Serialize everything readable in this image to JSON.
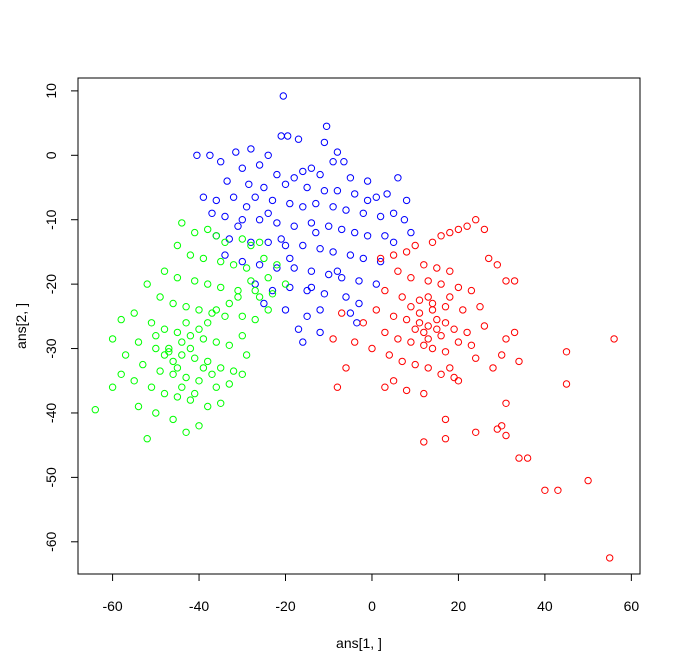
{
  "chart_data": {
    "type": "scatter",
    "title": "",
    "xlabel": "ans[1, ]",
    "ylabel": "ans[2, ]",
    "xlim": [
      -68,
      62
    ],
    "ylim": [
      -65,
      12
    ],
    "xticks": [
      -60,
      -40,
      -20,
      0,
      20,
      40,
      60
    ],
    "yticks": [
      10,
      0,
      -10,
      -20,
      -30,
      -40,
      -50,
      -60
    ],
    "marker": "open-circle",
    "series": [
      {
        "color": "#0000ff",
        "points": [
          [
            -20.5,
            9.2
          ],
          [
            -21,
            3
          ],
          [
            -19.5,
            3
          ],
          [
            -17,
            2.5
          ],
          [
            -10.5,
            4.5
          ],
          [
            -11,
            2
          ],
          [
            -8,
            0.5
          ],
          [
            -40.5,
            0
          ],
          [
            -37.5,
            0
          ],
          [
            -31.5,
            0.5
          ],
          [
            -28,
            1
          ],
          [
            -24,
            0
          ],
          [
            -9,
            -1
          ],
          [
            -6.5,
            -1
          ],
          [
            -35,
            -1
          ],
          [
            -26,
            -1.5
          ],
          [
            -30,
            -2
          ],
          [
            -16,
            -2.5
          ],
          [
            -22,
            -3
          ],
          [
            -18,
            -3.5
          ],
          [
            -14,
            -2
          ],
          [
            -12,
            -3
          ],
          [
            -5,
            -3.5
          ],
          [
            -1,
            -4
          ],
          [
            6,
            -3.5
          ],
          [
            -33.5,
            -4
          ],
          [
            -28.5,
            -4.5
          ],
          [
            -25,
            -5
          ],
          [
            -20,
            -4.5
          ],
          [
            -15,
            -5
          ],
          [
            -11,
            -5.5
          ],
          [
            -8,
            -5.5
          ],
          [
            -4,
            -6
          ],
          [
            -1,
            -7
          ],
          [
            1,
            -6.5
          ],
          [
            3.5,
            -6
          ],
          [
            8,
            -7
          ],
          [
            -39,
            -6.5
          ],
          [
            -36,
            -7
          ],
          [
            -32,
            -6.5
          ],
          [
            -27,
            -6.5
          ],
          [
            -23,
            -7
          ],
          [
            -19,
            -7.5
          ],
          [
            -16,
            -8
          ],
          [
            -13,
            -7.5
          ],
          [
            -9,
            -8
          ],
          [
            -6,
            -8.5
          ],
          [
            -2,
            -9
          ],
          [
            2,
            -9.5
          ],
          [
            5,
            -9
          ],
          [
            7.5,
            -10
          ],
          [
            -37,
            -9
          ],
          [
            -34,
            -9.5
          ],
          [
            -30,
            -10
          ],
          [
            -26,
            -10
          ],
          [
            -22,
            -10.5
          ],
          [
            -18,
            -11
          ],
          [
            -14,
            -10.5
          ],
          [
            -10,
            -11
          ],
          [
            -7,
            -11.5
          ],
          [
            -4,
            -12
          ],
          [
            -1,
            -12.5
          ],
          [
            3,
            -12.5
          ],
          [
            5,
            -13.5
          ],
          [
            9,
            -12
          ],
          [
            -36,
            -12.5
          ],
          [
            -33,
            -13
          ],
          [
            -28,
            -13.5
          ],
          [
            -24,
            -13.5
          ],
          [
            -20,
            -14
          ],
          [
            -16,
            -14
          ],
          [
            -12,
            -14.5
          ],
          [
            -9,
            -15
          ],
          [
            -5,
            -15.5
          ],
          [
            -2,
            -16
          ],
          [
            2,
            -16.5
          ],
          [
            -34,
            -15.5
          ],
          [
            -30,
            -16.5
          ],
          [
            -26,
            -17
          ],
          [
            -22,
            -17.5
          ],
          [
            -18,
            -17.5
          ],
          [
            -14,
            -18
          ],
          [
            -10,
            -18.5
          ],
          [
            -7,
            -19
          ],
          [
            -3,
            -19.5
          ],
          [
            1,
            -20
          ],
          [
            -27,
            -20
          ],
          [
            -23,
            -21
          ],
          [
            -19,
            -20.5
          ],
          [
            -15,
            -21
          ],
          [
            -11,
            -21.5
          ],
          [
            -6,
            -22
          ],
          [
            -3,
            -23
          ],
          [
            -25,
            -23
          ],
          [
            -20,
            -24
          ],
          [
            -15,
            -25
          ],
          [
            -12,
            -24
          ],
          [
            -5,
            -24.5
          ],
          [
            -3.5,
            -26
          ],
          [
            -17,
            -27
          ],
          [
            -12,
            -27.5
          ],
          [
            -16,
            -29
          ],
          [
            -14,
            -20.5
          ],
          [
            -8,
            -18
          ],
          [
            -21,
            -13
          ],
          [
            -31,
            -11
          ],
          [
            -29,
            -8
          ],
          [
            -24,
            -9
          ],
          [
            -19,
            -16
          ],
          [
            -13,
            -12
          ]
        ]
      },
      {
        "color": "#ff0000",
        "points": [
          [
            24,
            -10
          ],
          [
            26,
            -11.5
          ],
          [
            22,
            -11
          ],
          [
            20,
            -11.5
          ],
          [
            18,
            -12
          ],
          [
            16,
            -12.5
          ],
          [
            14,
            -13.5
          ],
          [
            10,
            -14
          ],
          [
            8,
            -15
          ],
          [
            5,
            -15.5
          ],
          [
            2,
            -16
          ],
          [
            12,
            -17
          ],
          [
            15,
            -17.5
          ],
          [
            18,
            -18
          ],
          [
            27,
            -16
          ],
          [
            29,
            -17
          ],
          [
            6,
            -18
          ],
          [
            9,
            -19
          ],
          [
            13,
            -19.5
          ],
          [
            16,
            -20
          ],
          [
            20,
            -20.5
          ],
          [
            23,
            -21
          ],
          [
            31,
            -19.5
          ],
          [
            33,
            -19.5
          ],
          [
            3,
            -21
          ],
          [
            7,
            -22
          ],
          [
            11,
            -22.5
          ],
          [
            14,
            -23
          ],
          [
            17,
            -23.5
          ],
          [
            21,
            -24
          ],
          [
            25,
            -23.5
          ],
          [
            1,
            -24
          ],
          [
            5,
            -25
          ],
          [
            8,
            -25.5
          ],
          [
            11,
            -26
          ],
          [
            13,
            -26.5
          ],
          [
            15,
            -27
          ],
          [
            19,
            -27
          ],
          [
            22,
            -27.5
          ],
          [
            26,
            -26.5
          ],
          [
            -2,
            -26
          ],
          [
            3,
            -27.5
          ],
          [
            6,
            -28.5
          ],
          [
            9,
            -29
          ],
          [
            12,
            -29.5
          ],
          [
            14,
            -30
          ],
          [
            17,
            -30.5
          ],
          [
            20,
            -29
          ],
          [
            23,
            -29.5
          ],
          [
            31,
            -28.5
          ],
          [
            33,
            -27.5
          ],
          [
            -4,
            -29
          ],
          [
            0,
            -30
          ],
          [
            4,
            -31
          ],
          [
            7,
            -32
          ],
          [
            10,
            -32.5
          ],
          [
            13,
            -33
          ],
          [
            16,
            -34
          ],
          [
            19,
            -34.5
          ],
          [
            24,
            -31.5
          ],
          [
            30,
            -31
          ],
          [
            34,
            -32
          ],
          [
            45,
            -30.5
          ],
          [
            56,
            -28.5
          ],
          [
            5,
            -35
          ],
          [
            8,
            -36.5
          ],
          [
            12,
            -37
          ],
          [
            3,
            -36
          ],
          [
            -8,
            -36
          ],
          [
            18,
            -33
          ],
          [
            20,
            -35
          ],
          [
            28,
            -33
          ],
          [
            31,
            -38.5
          ],
          [
            45,
            -35.5
          ],
          [
            17,
            -41
          ],
          [
            30,
            -42
          ],
          [
            12,
            -44.5
          ],
          [
            17,
            -44
          ],
          [
            24,
            -43
          ],
          [
            29,
            -42.5
          ],
          [
            31,
            -43.5
          ],
          [
            34,
            -47
          ],
          [
            36,
            -47
          ],
          [
            40,
            -52
          ],
          [
            43,
            -52
          ],
          [
            50,
            -50.5
          ],
          [
            55,
            -62.5
          ],
          [
            -9,
            -28.5
          ],
          [
            -6,
            -33
          ],
          [
            -7,
            -24.5
          ],
          [
            14,
            -24
          ],
          [
            15,
            -25.5
          ],
          [
            13,
            -22
          ],
          [
            11,
            -24.5
          ],
          [
            16,
            -28
          ],
          [
            12,
            -27.5
          ],
          [
            10,
            -27
          ],
          [
            17,
            -26
          ],
          [
            13,
            -28.5
          ],
          [
            9,
            -23.5
          ],
          [
            18,
            -22
          ]
        ]
      },
      {
        "color": "#00ff00",
        "points": [
          [
            -44,
            -10.5
          ],
          [
            -41,
            -12
          ],
          [
            -38,
            -11.5
          ],
          [
            -36,
            -12.5
          ],
          [
            -34,
            -13.5
          ],
          [
            -30,
            -13
          ],
          [
            -28,
            -14
          ],
          [
            -26,
            -13.5
          ],
          [
            -45,
            -14
          ],
          [
            -42,
            -15.5
          ],
          [
            -39,
            -16
          ],
          [
            -35,
            -16.5
          ],
          [
            -32,
            -17
          ],
          [
            -29,
            -17.5
          ],
          [
            -25,
            -16
          ],
          [
            -22,
            -17
          ],
          [
            -48,
            -18
          ],
          [
            -45,
            -19
          ],
          [
            -41,
            -19.5
          ],
          [
            -38,
            -20
          ],
          [
            -35,
            -20.5
          ],
          [
            -31,
            -21
          ],
          [
            -27,
            -21
          ],
          [
            -23,
            -21.5
          ],
          [
            -20,
            -20
          ],
          [
            -52,
            -20
          ],
          [
            -49,
            -22
          ],
          [
            -46,
            -23
          ],
          [
            -43,
            -23.5
          ],
          [
            -40,
            -24
          ],
          [
            -37,
            -24.5
          ],
          [
            -34,
            -25
          ],
          [
            -30,
            -25
          ],
          [
            -27,
            -25.5
          ],
          [
            -24,
            -24
          ],
          [
            -55,
            -24.5
          ],
          [
            -58,
            -25.5
          ],
          [
            -51,
            -26
          ],
          [
            -48,
            -27
          ],
          [
            -45,
            -27.5
          ],
          [
            -42,
            -28
          ],
          [
            -39,
            -28.5
          ],
          [
            -36,
            -29
          ],
          [
            -33,
            -29.5
          ],
          [
            -30,
            -28
          ],
          [
            -60,
            -28.5
          ],
          [
            -54,
            -29
          ],
          [
            -50,
            -30
          ],
          [
            -47,
            -30.5
          ],
          [
            -44,
            -31
          ],
          [
            -41,
            -31.5
          ],
          [
            -38,
            -32
          ],
          [
            -35,
            -33
          ],
          [
            -32,
            -33.5
          ],
          [
            -29,
            -31
          ],
          [
            -57,
            -31
          ],
          [
            -53,
            -32.5
          ],
          [
            -49,
            -33.5
          ],
          [
            -46,
            -34
          ],
          [
            -43,
            -34.5
          ],
          [
            -40,
            -35
          ],
          [
            -36,
            -36
          ],
          [
            -33,
            -35.5
          ],
          [
            -30,
            -34
          ],
          [
            -58,
            -34
          ],
          [
            -55,
            -35
          ],
          [
            -51,
            -36
          ],
          [
            -48,
            -37
          ],
          [
            -45,
            -37.5
          ],
          [
            -42,
            -38
          ],
          [
            -38,
            -39
          ],
          [
            -35,
            -38.5
          ],
          [
            -60,
            -36
          ],
          [
            -54,
            -39
          ],
          [
            -50,
            -40
          ],
          [
            -46,
            -41
          ],
          [
            -43,
            -43
          ],
          [
            -40,
            -42
          ],
          [
            -52,
            -44
          ],
          [
            -64,
            -39.5
          ],
          [
            -47,
            -30
          ],
          [
            -44,
            -29
          ],
          [
            -46,
            -32
          ],
          [
            -42,
            -30
          ],
          [
            -40,
            -27
          ],
          [
            -38,
            -26
          ],
          [
            -36,
            -24
          ],
          [
            -33,
            -23
          ],
          [
            -31,
            -22
          ],
          [
            -28,
            -19.5
          ],
          [
            -26,
            -22
          ],
          [
            -24,
            -19
          ],
          [
            -39,
            -33
          ],
          [
            -44,
            -36
          ],
          [
            -41,
            -37
          ],
          [
            -37,
            -34
          ],
          [
            -45,
            -33
          ],
          [
            -48,
            -31
          ],
          [
            -50,
            -28
          ],
          [
            -43,
            -26
          ]
        ]
      }
    ]
  }
}
